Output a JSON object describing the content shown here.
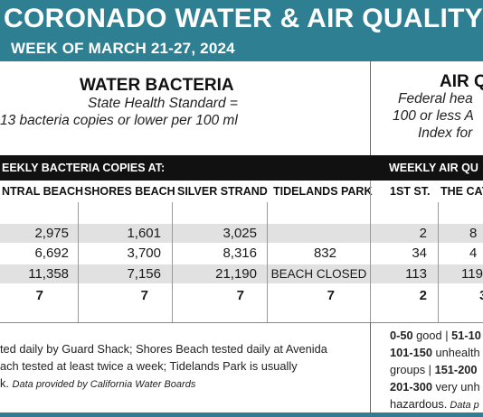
{
  "header": {
    "title": "CORONADO WATER & AIR QUALITY R",
    "subtitle": "WEEK OF MARCH 21-27, 2024"
  },
  "water": {
    "title": "WATER BACTERIA",
    "standard_line1": "State Health Standard =",
    "standard_line2": "13 bacteria copies or lower per 100 ml",
    "bar_label": "EEKLY BACTERIA COPIES AT:",
    "columns": [
      "NTRAL BEACH",
      "SHORES BEACH",
      "SILVER STRAND",
      "TIDELANDS PARK"
    ],
    "rows": [
      [
        "2,975",
        "1,601",
        "3,025",
        ""
      ],
      [
        "6,692",
        "3,700",
        "8,316",
        "832"
      ],
      [
        "11,358",
        "7,156",
        "21,190",
        "BEACH CLOSED"
      ]
    ],
    "counts": [
      "7",
      "7",
      "7",
      "7"
    ],
    "note_line1": "ted daily by Guard Shack; Shores Beach tested daily at Avenida",
    "note_line2": "ach tested at least twice a week; Tidelands Park is usually",
    "note_line3_lead": "k.",
    "note_line3_credit": "Data provided by California Water Boards"
  },
  "air": {
    "title": "AIR Q",
    "standard_line1": "Federal hea",
    "standard_line2": "100 or less A",
    "standard_line3": "Index for",
    "bar_label": "WEEKLY AIR QU",
    "columns": [
      "1ST ST.",
      "THE CAY"
    ],
    "rows": [
      [
        "2",
        "8"
      ],
      [
        "34",
        "4"
      ],
      [
        "113",
        "119"
      ]
    ],
    "counts": [
      "2",
      "3"
    ],
    "aqi_line1_a": "0-50",
    "aqi_line1_b": " good | ",
    "aqi_line1_c": "51-10",
    "aqi_line2_a": "101-150",
    "aqi_line2_b": " unhealth",
    "aqi_line3_a": "groups | ",
    "aqi_line3_b": "151-200",
    "aqi_line4_a": "201-300",
    "aqi_line4_b": " very unh",
    "aqi_line5_a": "hazardous.",
    "aqi_line5_b": " Data p"
  },
  "colors": {
    "header_bg": "#2f7f93",
    "bar_bg": "#111111",
    "row_shade": "#e1e1e1"
  }
}
